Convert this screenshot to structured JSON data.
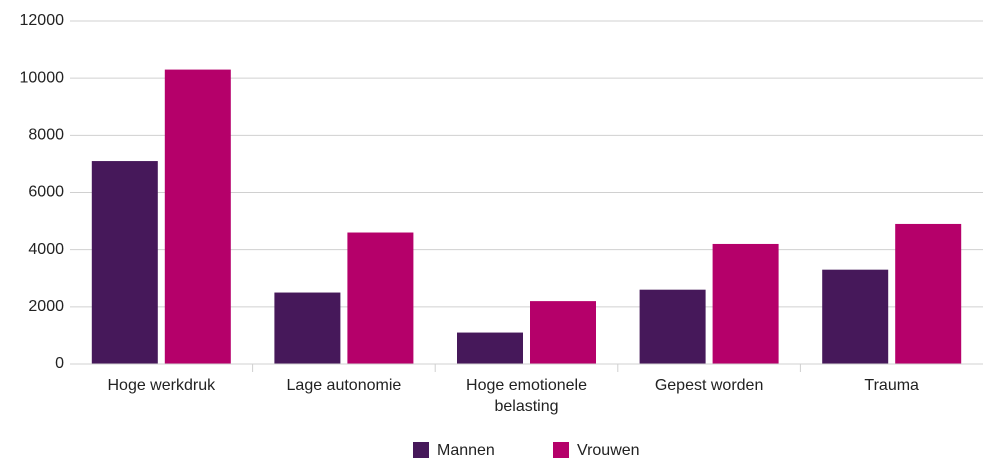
{
  "chart_data": {
    "type": "bar",
    "categories": [
      "Hoge werkdruk",
      "Lage autonomie",
      "Hoge emotionele belasting",
      "Gepest worden",
      "Trauma"
    ],
    "series": [
      {
        "name": "Mannen",
        "color": "#46185a",
        "values": [
          7100,
          2500,
          1100,
          2600,
          3300
        ]
      },
      {
        "name": "Vrouwen",
        "color": "#b5006a",
        "values": [
          10300,
          4600,
          2200,
          4200,
          4900
        ]
      }
    ],
    "ylim": [
      0,
      12000
    ],
    "yticks": [
      0,
      2000,
      4000,
      6000,
      8000,
      10000,
      12000
    ],
    "grid": true,
    "legend": "bottom"
  }
}
